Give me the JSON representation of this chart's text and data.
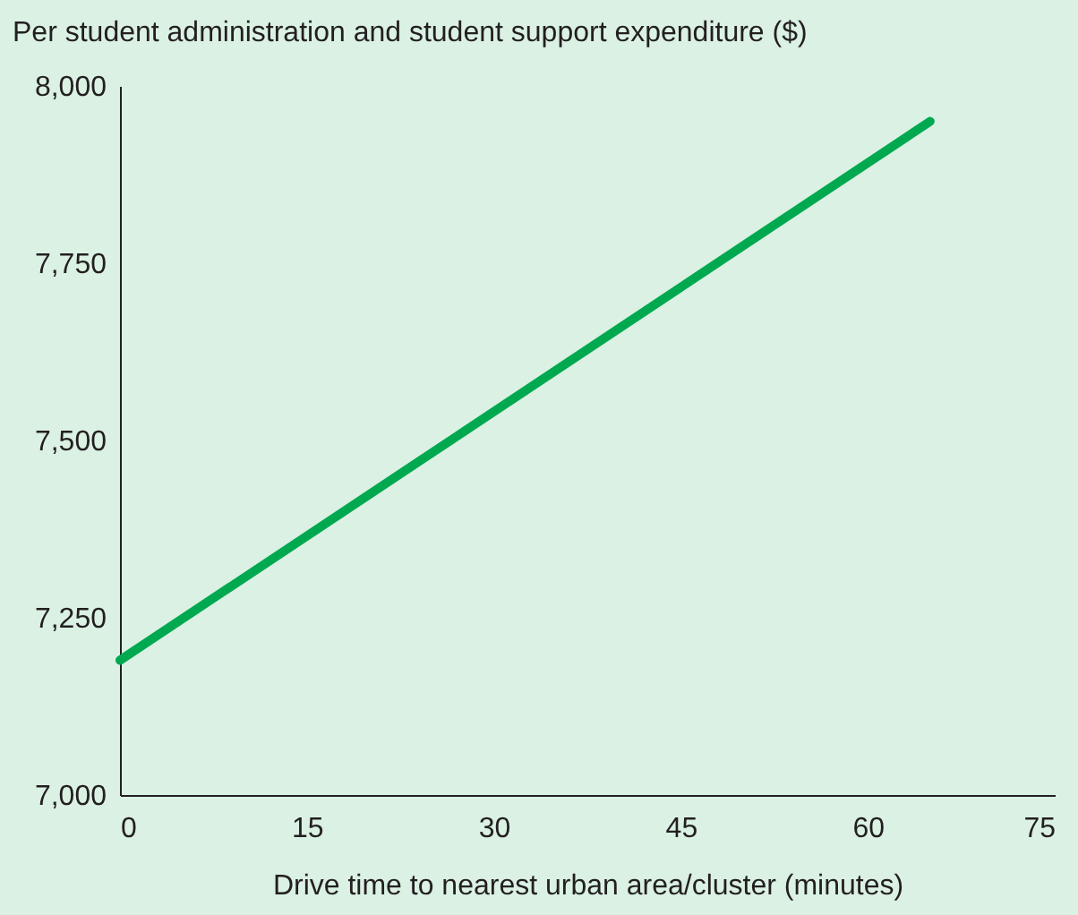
{
  "chart_data": {
    "type": "line",
    "ylabel": "Per student administration and student support expenditure ($)",
    "xlabel": "Drive time to nearest urban area/cluster (minutes)",
    "x": [
      0,
      65
    ],
    "series": [
      {
        "color": "#00a84f",
        "values": [
          7190,
          7950
        ]
      }
    ],
    "xlim": [
      0,
      75
    ],
    "xticks": [
      0,
      15,
      30,
      45,
      60,
      75
    ],
    "ylim": [
      7000,
      8000
    ],
    "yticks": [
      {
        "value": 7000,
        "label": "7,000"
      },
      {
        "value": 7250,
        "label": "7,250"
      },
      {
        "value": 7500,
        "label": "7,500"
      },
      {
        "value": 7750,
        "label": "7,750"
      },
      {
        "value": 8000,
        "label": "8,000"
      }
    ],
    "grid": false,
    "legend": false,
    "marker": "none",
    "line_style": "solid"
  }
}
